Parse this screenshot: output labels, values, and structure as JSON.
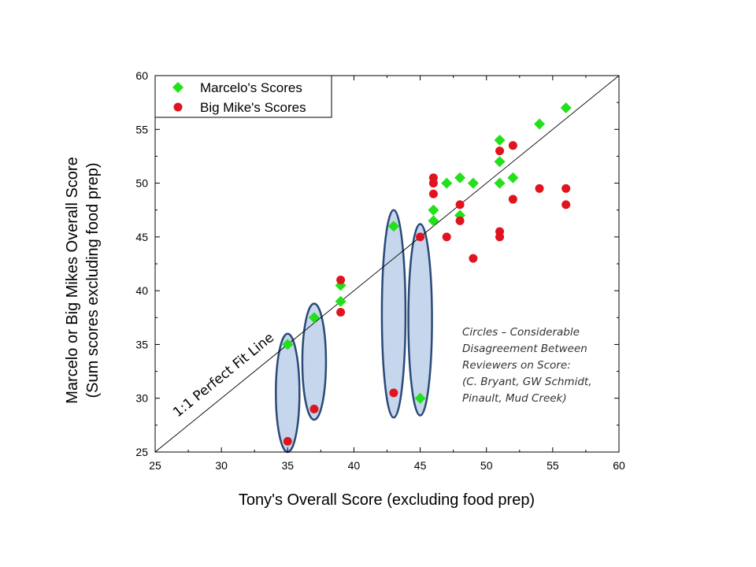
{
  "chart_data": {
    "type": "scatter",
    "xlabel": "Tony's Overall Score (excluding food prep)",
    "ylabel_lines": [
      "Marcelo or Big Mikes Overall Score",
      "(Sum scores excluding food prep)"
    ],
    "xlim": [
      25,
      60
    ],
    "ylim": [
      25,
      60
    ],
    "xticks": [
      25,
      30,
      35,
      40,
      45,
      50,
      55,
      60
    ],
    "yticks": [
      25,
      30,
      35,
      40,
      45,
      50,
      55,
      60
    ],
    "grid": false,
    "legend_position": "top-left",
    "series": [
      {
        "name": "Marcelo's Scores",
        "marker": "diamond",
        "color": "#22e01a",
        "points": [
          [
            35,
            35
          ],
          [
            37,
            37.5
          ],
          [
            39,
            39
          ],
          [
            39,
            40.5
          ],
          [
            43,
            46
          ],
          [
            45,
            30
          ],
          [
            46,
            46.5
          ],
          [
            46,
            47.5
          ],
          [
            47,
            50
          ],
          [
            48,
            50.5
          ],
          [
            48,
            47
          ],
          [
            49,
            50
          ],
          [
            51,
            54
          ],
          [
            51,
            52
          ],
          [
            51,
            50
          ],
          [
            52,
            50.5
          ],
          [
            54,
            55.5
          ],
          [
            56,
            57
          ]
        ]
      },
      {
        "name": "Big Mike's Scores",
        "marker": "circle",
        "color": "#e0141e",
        "points": [
          [
            35,
            26
          ],
          [
            37,
            29
          ],
          [
            39,
            41
          ],
          [
            39,
            38
          ],
          [
            43,
            30.5
          ],
          [
            45,
            45
          ],
          [
            46,
            50.5
          ],
          [
            46,
            50
          ],
          [
            46,
            49
          ],
          [
            47,
            45
          ],
          [
            48,
            48
          ],
          [
            48,
            46.5
          ],
          [
            49,
            43
          ],
          [
            51,
            53
          ],
          [
            51,
            45.5
          ],
          [
            51,
            45
          ],
          [
            52,
            53.5
          ],
          [
            52,
            48.5
          ],
          [
            54,
            49.5
          ],
          [
            56,
            49.5
          ],
          [
            56,
            48
          ]
        ]
      }
    ],
    "reference_line": {
      "label": "1:1 Perfect Fit Line",
      "from": [
        25,
        25
      ],
      "to": [
        60,
        60
      ]
    },
    "highlight_ellipses": [
      {
        "x": 35,
        "y_min": 25,
        "y_max": 36
      },
      {
        "x": 37,
        "y_min": 28,
        "y_max": 38.8
      },
      {
        "x": 43,
        "y_min": 28.2,
        "y_max": 47.5
      },
      {
        "x": 45,
        "y_min": 28.4,
        "y_max": 46.2
      }
    ],
    "annotation_lines": [
      "Circles – Considerable",
      "Disagreement Between",
      "Reviewers on Score:",
      "(C. Bryant, GW Schmidt,",
      "Pinault, Mud Creek)"
    ]
  }
}
